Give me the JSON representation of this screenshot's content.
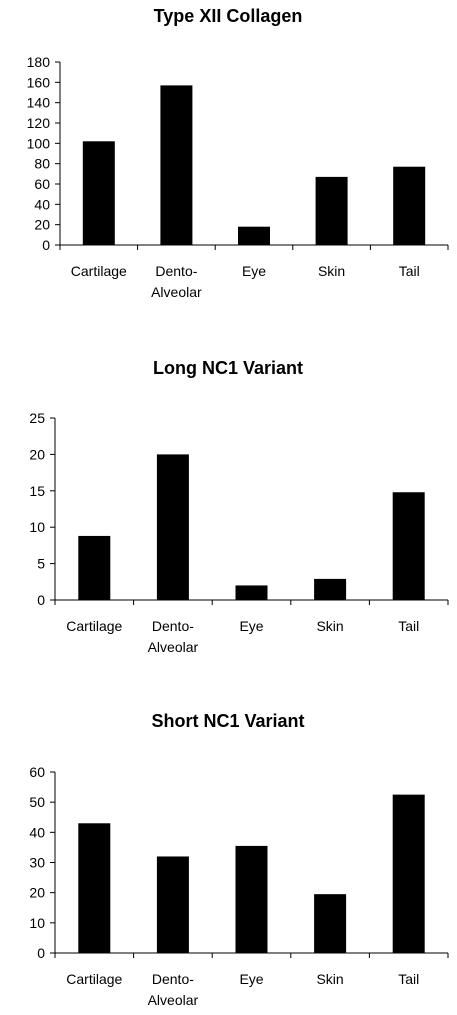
{
  "chart_data": [
    {
      "type": "bar",
      "title": "Type XII Collagen",
      "categories": [
        [
          "Cartilage"
        ],
        [
          "Dento-",
          "Alveolar"
        ],
        [
          "Eye"
        ],
        [
          "Skin"
        ],
        [
          "Tail"
        ]
      ],
      "values": [
        102,
        157,
        18,
        67,
        77
      ],
      "ylim": [
        0,
        180
      ],
      "yticks": [
        0,
        20,
        40,
        60,
        80,
        100,
        120,
        140,
        160,
        180
      ],
      "xlabel": "",
      "ylabel": ""
    },
    {
      "type": "bar",
      "title": "Long NC1 Variant",
      "categories": [
        [
          "Cartilage"
        ],
        [
          "Dento-",
          "Alveolar"
        ],
        [
          "Eye"
        ],
        [
          "Skin"
        ],
        [
          "Tail"
        ]
      ],
      "values": [
        8.8,
        20,
        2,
        2.9,
        14.8
      ],
      "ylim": [
        0,
        25
      ],
      "yticks": [
        0,
        5,
        10,
        15,
        20,
        25
      ],
      "xlabel": "",
      "ylabel": ""
    },
    {
      "type": "bar",
      "title": "Short NC1 Variant",
      "categories": [
        [
          "Cartilage"
        ],
        [
          "Dento-",
          "Alveolar"
        ],
        [
          "Eye"
        ],
        [
          "Skin"
        ],
        [
          "Tail"
        ]
      ],
      "values": [
        43,
        32,
        35.5,
        19.5,
        52.5
      ],
      "ylim": [
        0,
        60
      ],
      "yticks": [
        0,
        10,
        20,
        30,
        40,
        50,
        60
      ],
      "xlabel": "",
      "ylabel": ""
    }
  ]
}
